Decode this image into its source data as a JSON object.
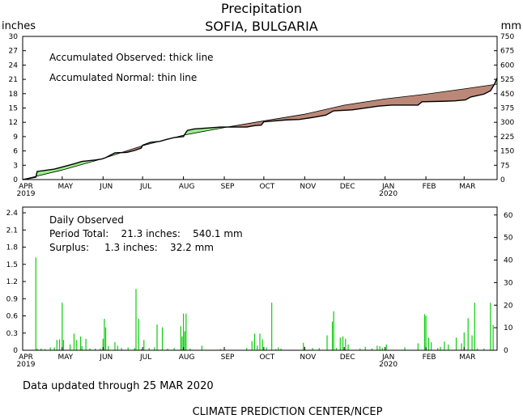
{
  "title": "Precipitation",
  "subtitle": "SOFIA, BULGARIA",
  "footer_updated": "Data updated through 25 MAR 2020",
  "footer_credit": "CLIMATE PREDICTION CENTER/NCEP",
  "colors": {
    "surplus": "#99ee88",
    "deficit": "#bb8877",
    "bars": "#11cc11",
    "axis": "#000000"
  },
  "chart_data": [
    {
      "type": "area",
      "left_unit": "inches",
      "right_unit": "mm",
      "legend_observed": "Accumulated Observed: thick line",
      "legend_normal": "Accumulated Normal: thin line",
      "ylim": [
        0,
        30
      ],
      "yticks": [
        0,
        3,
        6,
        9,
        12,
        15,
        18,
        21,
        24,
        27,
        30
      ],
      "ylim_right": [
        0,
        750
      ],
      "yticks_right": [
        0,
        75,
        150,
        225,
        300,
        375,
        450,
        525,
        600,
        675,
        750
      ],
      "xlim": [
        0,
        360
      ],
      "months": [
        {
          "label": "APR",
          "year": "2019",
          "day": 0
        },
        {
          "label": "MAY",
          "day": 30
        },
        {
          "label": "JUN",
          "day": 61
        },
        {
          "label": "JUL",
          "day": 91
        },
        {
          "label": "AUG",
          "day": 122
        },
        {
          "label": "SEP",
          "day": 153
        },
        {
          "label": "OCT",
          "day": 183
        },
        {
          "label": "NOV",
          "day": 214
        },
        {
          "label": "DEC",
          "day": 244
        },
        {
          "label": "JAN",
          "year": "2020",
          "day": 275
        },
        {
          "label": "FEB",
          "day": 306
        },
        {
          "label": "MAR",
          "day": 335
        }
      ],
      "observed": [
        [
          0,
          0
        ],
        [
          10,
          0.5
        ],
        [
          11,
          1.7
        ],
        [
          24,
          2.2
        ],
        [
          39,
          3.3
        ],
        [
          45,
          3.8
        ],
        [
          55,
          4.1
        ],
        [
          60,
          4.3
        ],
        [
          63,
          4.6
        ],
        [
          70,
          5.6
        ],
        [
          79,
          5.7
        ],
        [
          85,
          6.1
        ],
        [
          90,
          6.6
        ],
        [
          91,
          7.2
        ],
        [
          97,
          7.8
        ],
        [
          104,
          8.0
        ],
        [
          109,
          8.4
        ],
        [
          115,
          8.8
        ],
        [
          122,
          9.0
        ],
        [
          123,
          9.5
        ],
        [
          125,
          10.3
        ],
        [
          130,
          10.6
        ],
        [
          150,
          11.0
        ],
        [
          170,
          11.0
        ],
        [
          176,
          11.3
        ],
        [
          181,
          11.4
        ],
        [
          183,
          12.1
        ],
        [
          200,
          12.5
        ],
        [
          210,
          12.6
        ],
        [
          215,
          12.8
        ],
        [
          222,
          13.1
        ],
        [
          230,
          13.5
        ],
        [
          236,
          14.4
        ],
        [
          250,
          14.6
        ],
        [
          270,
          15.4
        ],
        [
          280,
          15.6
        ],
        [
          300,
          15.6
        ],
        [
          303,
          16.3
        ],
        [
          318,
          16.4
        ],
        [
          328,
          16.5
        ],
        [
          336,
          16.7
        ],
        [
          340,
          17.3
        ],
        [
          350,
          17.9
        ],
        [
          355,
          18.6
        ],
        [
          358,
          20.0
        ],
        [
          360,
          21.3
        ]
      ],
      "normal": [
        [
          0,
          0
        ],
        [
          30,
          2.0
        ],
        [
          61,
          4.4
        ],
        [
          91,
          7.1
        ],
        [
          122,
          9.3
        ],
        [
          153,
          10.9
        ],
        [
          183,
          12.3
        ],
        [
          214,
          13.7
        ],
        [
          244,
          15.6
        ],
        [
          275,
          16.9
        ],
        [
          306,
          17.9
        ],
        [
          335,
          19.0
        ],
        [
          360,
          20.0
        ]
      ]
    },
    {
      "type": "bar",
      "left_unit": "inches",
      "right_unit": "mm",
      "label_heading": "Daily Observed",
      "label_total": "Period Total:    21.3 inches:    540.1 mm",
      "label_surplus": "Surplus:     1.3 inches:    32.2 mm",
      "ylim": [
        0,
        2.5
      ],
      "yticks": [
        "0",
        "0.3",
        "0.6",
        "0.9",
        "1.2",
        "1.5",
        "1.8",
        "2.1",
        "2.4"
      ],
      "ylim_right": [
        0,
        63.5
      ],
      "yticks_right": [
        "0",
        "10",
        "20",
        "30",
        "40",
        "50",
        "60"
      ],
      "xlim": [
        0,
        360
      ],
      "daily": [
        [
          10,
          1.62
        ],
        [
          11,
          0.03
        ],
        [
          14,
          0.03
        ],
        [
          17,
          0.02
        ],
        [
          21,
          0.05
        ],
        [
          24,
          0.05
        ],
        [
          26,
          0.18
        ],
        [
          28,
          0.19
        ],
        [
          30,
          0.83
        ],
        [
          31,
          0.18
        ],
        [
          36,
          0.1
        ],
        [
          39,
          0.29
        ],
        [
          41,
          0.18
        ],
        [
          44,
          0.24
        ],
        [
          45,
          0.07
        ],
        [
          48,
          0.2
        ],
        [
          51,
          0.03
        ],
        [
          55,
          0.03
        ],
        [
          59,
          0.03
        ],
        [
          61,
          0.2
        ],
        [
          62,
          0.55
        ],
        [
          63,
          0.4
        ],
        [
          65,
          0.07
        ],
        [
          70,
          0.14
        ],
        [
          72,
          0.08
        ],
        [
          75,
          0.04
        ],
        [
          80,
          0.05
        ],
        [
          85,
          0.04
        ],
        [
          86,
          1.07
        ],
        [
          88,
          0.55
        ],
        [
          90,
          0.02
        ],
        [
          92,
          0.18
        ],
        [
          96,
          0.04
        ],
        [
          100,
          0.05
        ],
        [
          102,
          0.45
        ],
        [
          106,
          0.4
        ],
        [
          110,
          0.03
        ],
        [
          115,
          0.04
        ],
        [
          120,
          0.42
        ],
        [
          121,
          0.24
        ],
        [
          122,
          0.64
        ],
        [
          123,
          0.33
        ],
        [
          124,
          0.64
        ],
        [
          127,
          0.03
        ],
        [
          136,
          0.08
        ],
        [
          150,
          0.02
        ],
        [
          170,
          0.04
        ],
        [
          174,
          0.16
        ],
        [
          176,
          0.29
        ],
        [
          178,
          0.08
        ],
        [
          180,
          0.29
        ],
        [
          182,
          0.19
        ],
        [
          185,
          0.05
        ],
        [
          189,
          0.83
        ],
        [
          192,
          0.02
        ],
        [
          194,
          0.05
        ],
        [
          196,
          0.03
        ],
        [
          213,
          0.13
        ],
        [
          214,
          0.06
        ],
        [
          220,
          0.04
        ],
        [
          225,
          0.04
        ],
        [
          231,
          0.26
        ],
        [
          235,
          0.5
        ],
        [
          236,
          0.68
        ],
        [
          238,
          0.04
        ],
        [
          241,
          0.22
        ],
        [
          243,
          0.24
        ],
        [
          245,
          0.2
        ],
        [
          247,
          0.1
        ],
        [
          256,
          0.03
        ],
        [
          260,
          0.06
        ],
        [
          265,
          0.03
        ],
        [
          269,
          0.08
        ],
        [
          271,
          0.07
        ],
        [
          273,
          0.04
        ],
        [
          276,
          0.1
        ],
        [
          290,
          0.05
        ],
        [
          300,
          0.12
        ],
        [
          305,
          0.63
        ],
        [
          306,
          0.6
        ],
        [
          308,
          0.22
        ],
        [
          310,
          0.14
        ],
        [
          315,
          0.04
        ],
        [
          317,
          0.06
        ],
        [
          320,
          0.15
        ],
        [
          323,
          0.1
        ],
        [
          329,
          0.22
        ],
        [
          333,
          0.12
        ],
        [
          335,
          0.31
        ],
        [
          338,
          0.56
        ],
        [
          341,
          0.26
        ],
        [
          343,
          0.83
        ],
        [
          345,
          0.03
        ],
        [
          350,
          0.03
        ],
        [
          355,
          0.83
        ],
        [
          357,
          0.44
        ]
      ]
    }
  ]
}
